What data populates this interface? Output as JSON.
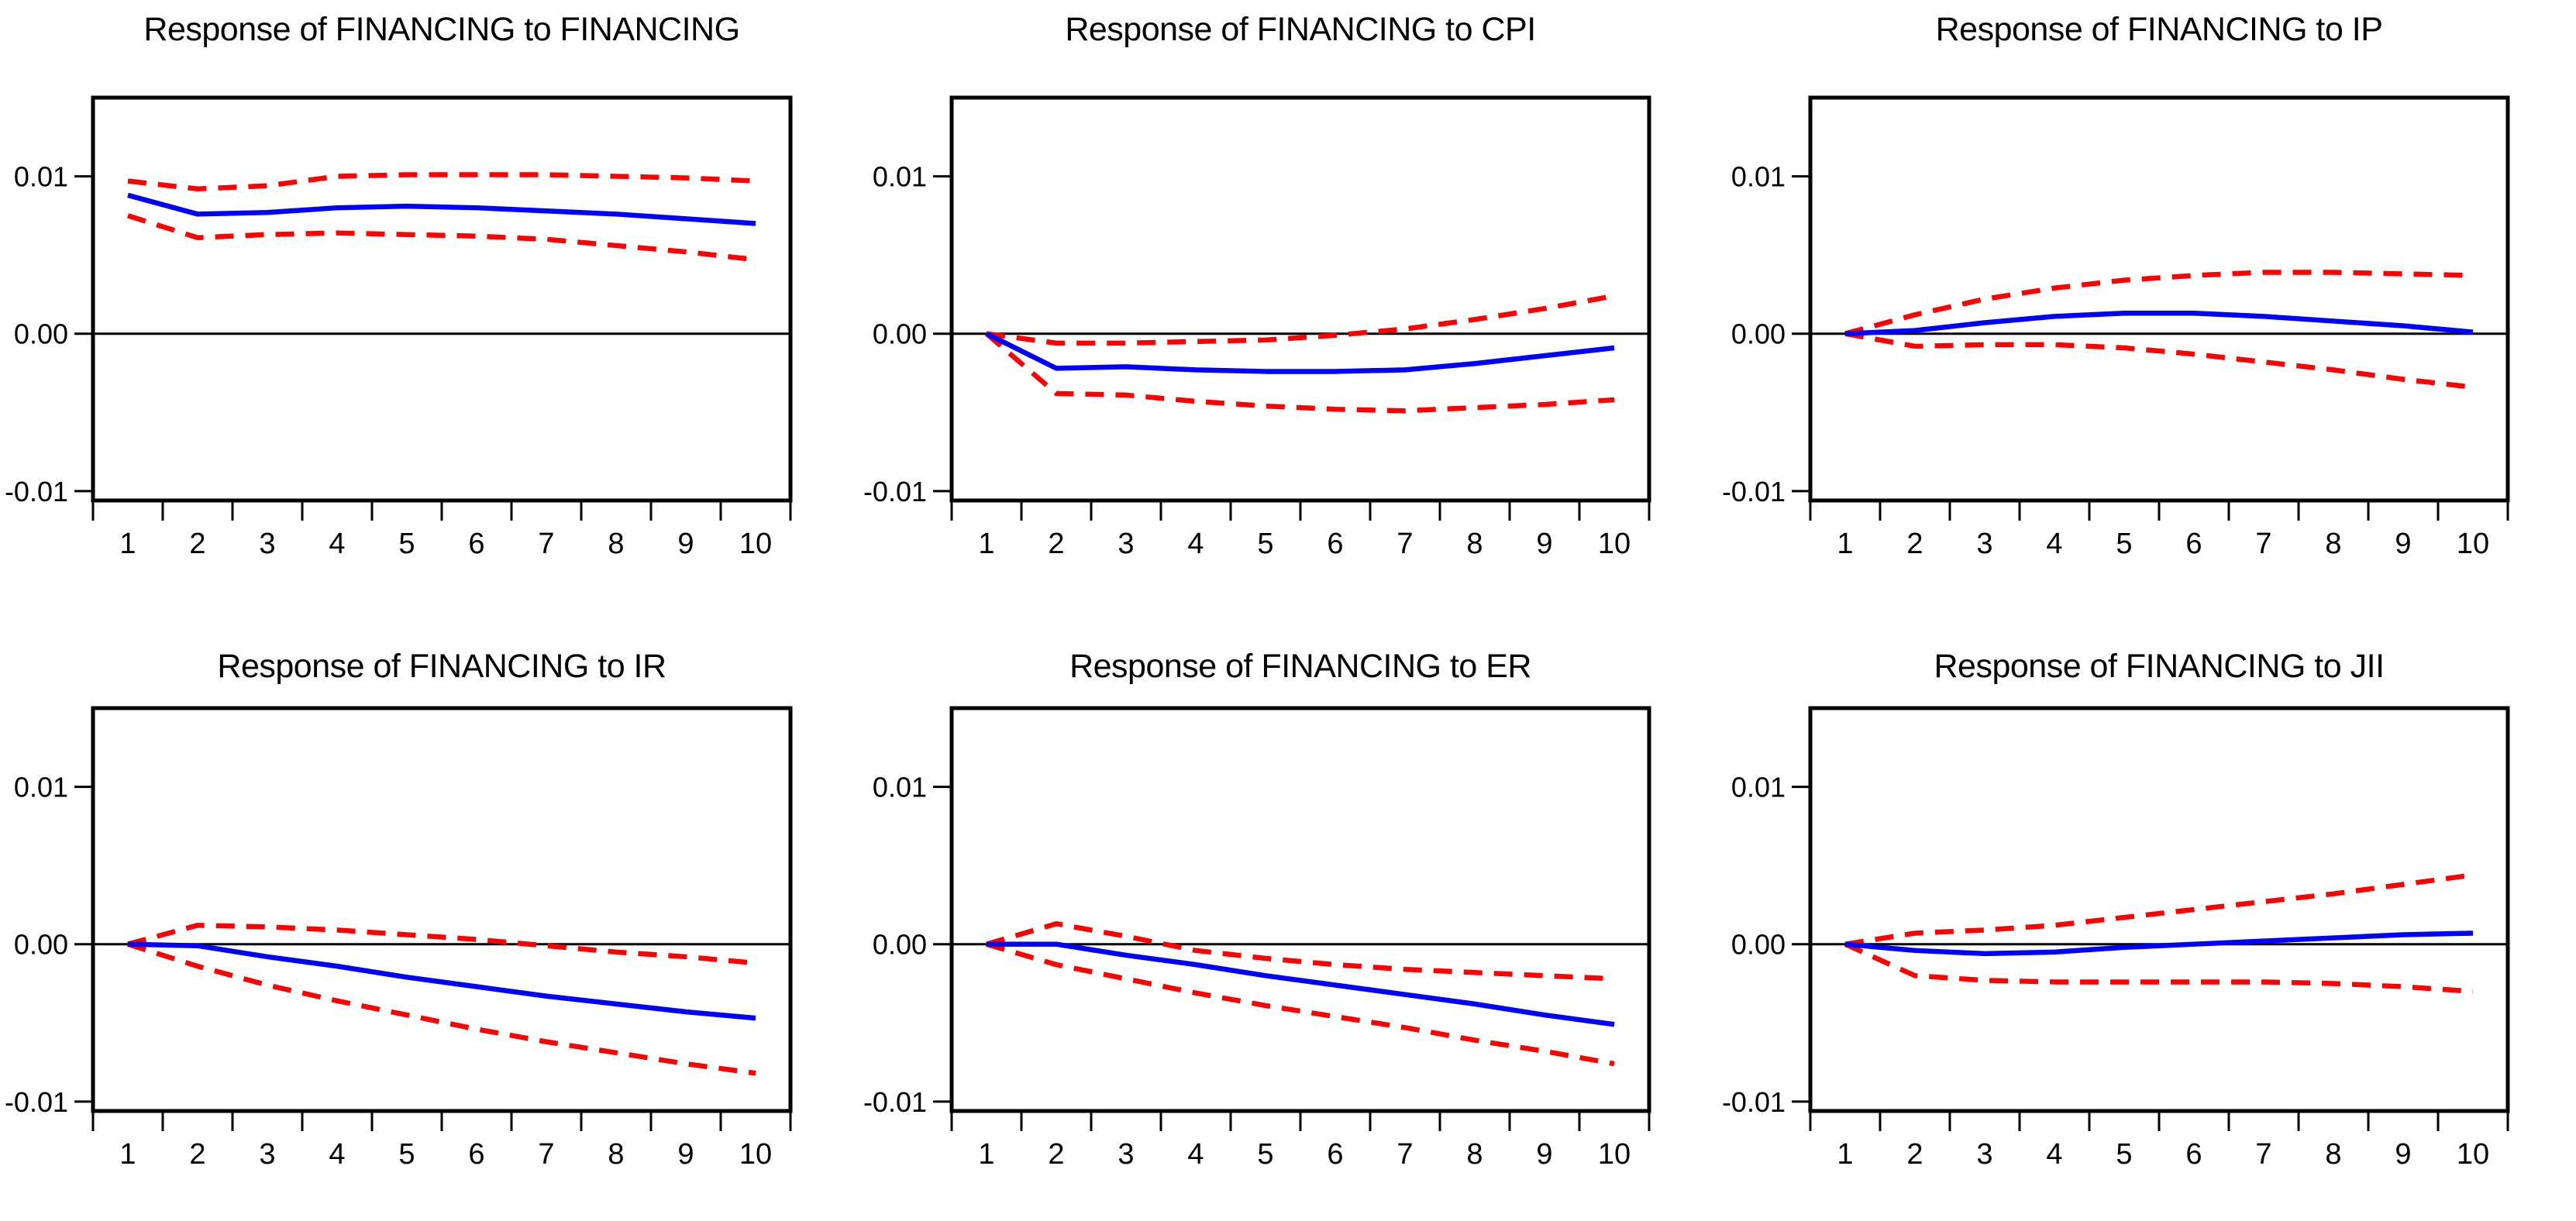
{
  "figure": {
    "kind": "impulse-response-grid",
    "rows": 2,
    "cols": 3,
    "background": "#ffffff"
  },
  "colors": {
    "response_line": "#0000ff",
    "confidence_band": "#ff0000",
    "axis": "#000000",
    "zero_line": "#000000",
    "text": "#000000"
  },
  "chart_data": [
    {
      "type": "line",
      "title": "Response of FINANCING to FINANCING",
      "x": [
        1,
        2,
        3,
        4,
        5,
        6,
        7,
        8,
        9,
        10
      ],
      "xticklabels": [
        "1",
        "2",
        "3",
        "4",
        "5",
        "6",
        "7",
        "8",
        "9",
        "10"
      ],
      "ylim": [
        -0.0106,
        0.015
      ],
      "yticks": [
        {
          "v": 0.01,
          "label": "0.01"
        },
        {
          "v": 0,
          "label": "0.00"
        },
        {
          "v": -0.01,
          "label": "-0.01"
        }
      ],
      "grid": false,
      "legend": "none",
      "series": [
        {
          "name": "response",
          "color": "#0000ff",
          "style": "solid",
          "values": [
            0.0088,
            0.0076,
            0.0077,
            0.008,
            0.0081,
            0.008,
            0.0078,
            0.0076,
            0.0073,
            0.007
          ]
        },
        {
          "name": "upper-band",
          "color": "#ff0000",
          "style": "dashed",
          "values": [
            0.0097,
            0.0092,
            0.0094,
            0.01,
            0.0101,
            0.0101,
            0.0101,
            0.01,
            0.0099,
            0.0097
          ]
        },
        {
          "name": "lower-band",
          "color": "#ff0000",
          "style": "dashed",
          "values": [
            0.0075,
            0.0061,
            0.0063,
            0.0064,
            0.0063,
            0.0062,
            0.006,
            0.0056,
            0.0052,
            0.0047
          ]
        }
      ]
    },
    {
      "type": "line",
      "title": "Response of FINANCING to CPI",
      "x": [
        1,
        2,
        3,
        4,
        5,
        6,
        7,
        8,
        9,
        10
      ],
      "xticklabels": [
        "1",
        "2",
        "3",
        "4",
        "5",
        "6",
        "7",
        "8",
        "9",
        "10"
      ],
      "ylim": [
        -0.0106,
        0.015
      ],
      "yticks": [
        {
          "v": 0.01,
          "label": "0.01"
        },
        {
          "v": 0,
          "label": "0.00"
        },
        {
          "v": -0.01,
          "label": "-0.01"
        }
      ],
      "grid": false,
      "legend": "none",
      "series": [
        {
          "name": "response",
          "color": "#0000ff",
          "style": "solid",
          "values": [
            0.0,
            -0.0022,
            -0.0021,
            -0.0023,
            -0.0024,
            -0.0024,
            -0.0023,
            -0.0019,
            -0.0014,
            -0.0009
          ]
        },
        {
          "name": "upper-band",
          "color": "#ff0000",
          "style": "dashed",
          "values": [
            0.0,
            -0.0006,
            -0.0006,
            -0.0005,
            -0.0004,
            -0.0001,
            0.0003,
            0.0009,
            0.0016,
            0.0024
          ]
        },
        {
          "name": "lower-band",
          "color": "#ff0000",
          "style": "dashed",
          "values": [
            0.0,
            -0.0038,
            -0.0039,
            -0.0043,
            -0.0046,
            -0.0048,
            -0.0049,
            -0.0047,
            -0.0045,
            -0.0042
          ]
        }
      ]
    },
    {
      "type": "line",
      "title": "Response of FINANCING to IP",
      "x": [
        1,
        2,
        3,
        4,
        5,
        6,
        7,
        8,
        9,
        10
      ],
      "xticklabels": [
        "1",
        "2",
        "3",
        "4",
        "5",
        "6",
        "7",
        "8",
        "9",
        "10"
      ],
      "ylim": [
        -0.0106,
        0.015
      ],
      "yticks": [
        {
          "v": 0.01,
          "label": "0.01"
        },
        {
          "v": 0,
          "label": "0.00"
        },
        {
          "v": -0.01,
          "label": "-0.01"
        }
      ],
      "grid": false,
      "legend": "none",
      "series": [
        {
          "name": "response",
          "color": "#0000ff",
          "style": "solid",
          "values": [
            0.0,
            0.0002,
            0.0007,
            0.0011,
            0.0013,
            0.0013,
            0.0011,
            0.0008,
            0.0005,
            0.0001
          ]
        },
        {
          "name": "upper-band",
          "color": "#ff0000",
          "style": "dashed",
          "values": [
            0.0,
            0.0012,
            0.0022,
            0.0029,
            0.0034,
            0.0037,
            0.0039,
            0.0039,
            0.0038,
            0.0037
          ]
        },
        {
          "name": "lower-band",
          "color": "#ff0000",
          "style": "dashed",
          "values": [
            0.0,
            -0.0008,
            -0.0007,
            -0.0007,
            -0.0009,
            -0.0013,
            -0.0018,
            -0.0023,
            -0.0029,
            -0.0034
          ]
        }
      ]
    },
    {
      "type": "line",
      "title": "Response of FINANCING to IR",
      "x": [
        1,
        2,
        3,
        4,
        5,
        6,
        7,
        8,
        9,
        10
      ],
      "xticklabels": [
        "1",
        "2",
        "3",
        "4",
        "5",
        "6",
        "7",
        "8",
        "9",
        "10"
      ],
      "ylim": [
        -0.0106,
        0.015
      ],
      "yticks": [
        {
          "v": 0.01,
          "label": "0.01"
        },
        {
          "v": 0,
          "label": "0.00"
        },
        {
          "v": -0.01,
          "label": "-0.01"
        }
      ],
      "grid": false,
      "legend": "none",
      "series": [
        {
          "name": "response",
          "color": "#0000ff",
          "style": "solid",
          "values": [
            0.0,
            -0.0001,
            -0.0008,
            -0.0014,
            -0.0021,
            -0.0027,
            -0.0033,
            -0.0038,
            -0.0043,
            -0.0047
          ]
        },
        {
          "name": "upper-band",
          "color": "#ff0000",
          "style": "dashed",
          "values": [
            0.0,
            0.0012,
            0.0011,
            0.0009,
            0.0006,
            0.0003,
            -0.0001,
            -0.0005,
            -0.0008,
            -0.0012
          ]
        },
        {
          "name": "lower-band",
          "color": "#ff0000",
          "style": "dashed",
          "values": [
            0.0,
            -0.0014,
            -0.0026,
            -0.0036,
            -0.0045,
            -0.0054,
            -0.0062,
            -0.0069,
            -0.0076,
            -0.0082
          ]
        }
      ]
    },
    {
      "type": "line",
      "title": "Response of FINANCING to ER",
      "x": [
        1,
        2,
        3,
        4,
        5,
        6,
        7,
        8,
        9,
        10
      ],
      "xticklabels": [
        "1",
        "2",
        "3",
        "4",
        "5",
        "6",
        "7",
        "8",
        "9",
        "10"
      ],
      "ylim": [
        -0.0106,
        0.015
      ],
      "yticks": [
        {
          "v": 0.01,
          "label": "0.01"
        },
        {
          "v": 0,
          "label": "0.00"
        },
        {
          "v": -0.01,
          "label": "-0.01"
        }
      ],
      "grid": false,
      "legend": "none",
      "series": [
        {
          "name": "response",
          "color": "#0000ff",
          "style": "solid",
          "values": [
            0.0,
            0.0,
            -0.0007,
            -0.0013,
            -0.002,
            -0.0026,
            -0.0032,
            -0.0038,
            -0.0045,
            -0.0051
          ]
        },
        {
          "name": "upper-band",
          "color": "#ff0000",
          "style": "dashed",
          "values": [
            0.0,
            0.0013,
            0.0005,
            -0.0004,
            -0.0009,
            -0.0013,
            -0.0016,
            -0.0018,
            -0.002,
            -0.0022
          ]
        },
        {
          "name": "lower-band",
          "color": "#ff0000",
          "style": "dashed",
          "values": [
            0.0,
            -0.0013,
            -0.0022,
            -0.0031,
            -0.0039,
            -0.0046,
            -0.0053,
            -0.0061,
            -0.0068,
            -0.0076
          ]
        }
      ]
    },
    {
      "type": "line",
      "title": "Response of FINANCING to JII",
      "x": [
        1,
        2,
        3,
        4,
        5,
        6,
        7,
        8,
        9,
        10
      ],
      "xticklabels": [
        "1",
        "2",
        "3",
        "4",
        "5",
        "6",
        "7",
        "8",
        "9",
        "10"
      ],
      "ylim": [
        -0.0106,
        0.015
      ],
      "yticks": [
        {
          "v": 0.01,
          "label": "0.01"
        },
        {
          "v": 0,
          "label": "0.00"
        },
        {
          "v": -0.01,
          "label": "-0.01"
        }
      ],
      "grid": false,
      "legend": "none",
      "series": [
        {
          "name": "response",
          "color": "#0000ff",
          "style": "solid",
          "values": [
            0.0,
            -0.0004,
            -0.0006,
            -0.0005,
            -0.0002,
            0.0,
            0.0002,
            0.0004,
            0.0006,
            0.0007
          ]
        },
        {
          "name": "upper-band",
          "color": "#ff0000",
          "style": "dashed",
          "values": [
            0.0,
            0.0007,
            0.0009,
            0.0012,
            0.0017,
            0.0022,
            0.0027,
            0.0032,
            0.0038,
            0.0044
          ]
        },
        {
          "name": "lower-band",
          "color": "#ff0000",
          "style": "dashed",
          "values": [
            0.0,
            -0.002,
            -0.0023,
            -0.0024,
            -0.0024,
            -0.0024,
            -0.0024,
            -0.0025,
            -0.0027,
            -0.003
          ]
        }
      ]
    }
  ]
}
